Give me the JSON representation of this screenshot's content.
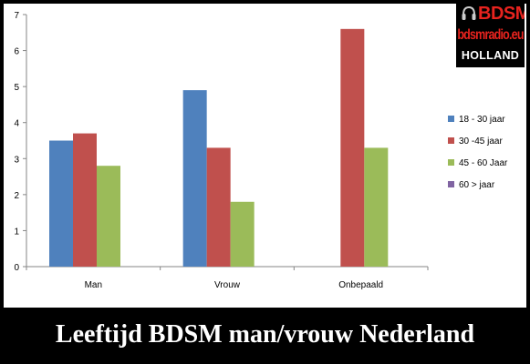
{
  "logo": {
    "title": "BDSM",
    "site": "bdsmradio.eu",
    "country": "HOLLAND"
  },
  "caption": "Leeftijd BDSM man/vrouw Nederland",
  "colors": {
    "page_background": "#000000",
    "chart_background": "#ffffff",
    "logo_red": "#e8231e"
  },
  "chart_data": {
    "type": "bar",
    "categories": [
      "Man",
      "Vrouw",
      "Onbepaald"
    ],
    "series": [
      {
        "name": "18 - 30 jaar",
        "color": "#4f81bd",
        "values": [
          3.5,
          4.9,
          null
        ]
      },
      {
        "name": "30 -45 jaar",
        "color": "#c0504d",
        "values": [
          3.7,
          3.3,
          6.6
        ]
      },
      {
        "name": "45 - 60 Jaar",
        "color": "#9bbb59",
        "values": [
          2.8,
          1.8,
          3.3
        ]
      },
      {
        "name": "60 > jaar",
        "color": "#8064a2",
        "values": [
          null,
          null,
          null
        ]
      }
    ],
    "yticks": [
      "0",
      "1",
      "2",
      "3",
      "4",
      "5",
      "6",
      "7"
    ],
    "ylim": [
      0,
      7
    ],
    "grid": false,
    "legend_position": "right"
  }
}
